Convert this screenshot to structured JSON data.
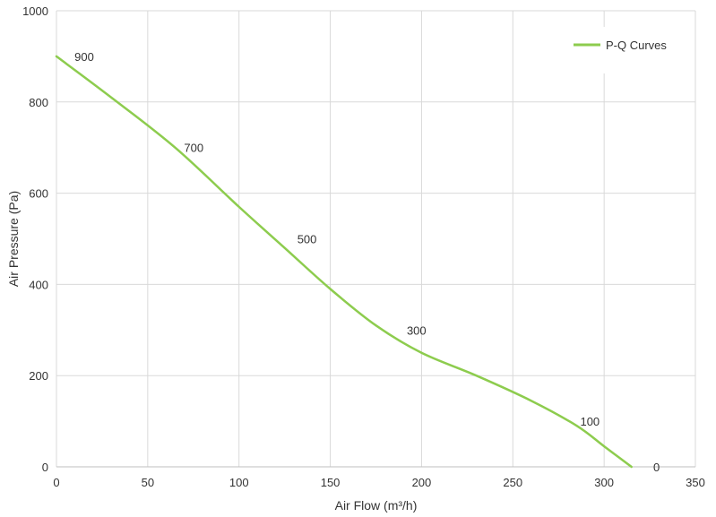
{
  "chart_data": {
    "type": "line",
    "title": "",
    "xlabel": "Air Flow  (m³/h)",
    "ylabel": "Air Pressure  (Pa)",
    "xlim": [
      0,
      350
    ],
    "ylim": [
      0,
      1000
    ],
    "xticks": [
      0,
      50,
      100,
      150,
      200,
      250,
      300,
      350
    ],
    "yticks": [
      0,
      200,
      400,
      600,
      800,
      1000
    ],
    "grid": true,
    "legend_position": "top-right",
    "series": [
      {
        "name": "P-Q Curves",
        "color": "#8dcc4e",
        "x": [
          0,
          30,
          65,
          100,
          125,
          150,
          175,
          200,
          230,
          260,
          285,
          300,
          315
        ],
        "y": [
          900,
          810,
          700,
          570,
          480,
          390,
          310,
          250,
          200,
          145,
          90,
          45,
          0
        ]
      }
    ],
    "data_labels": [
      {
        "x": 5,
        "y": 900,
        "text": "900"
      },
      {
        "x": 65,
        "y": 700,
        "text": "700"
      },
      {
        "x": 127,
        "y": 500,
        "text": "500"
      },
      {
        "x": 187,
        "y": 300,
        "text": "300"
      },
      {
        "x": 282,
        "y": 100,
        "text": "100"
      },
      {
        "x": 322,
        "y": 0,
        "text": "0"
      }
    ]
  }
}
